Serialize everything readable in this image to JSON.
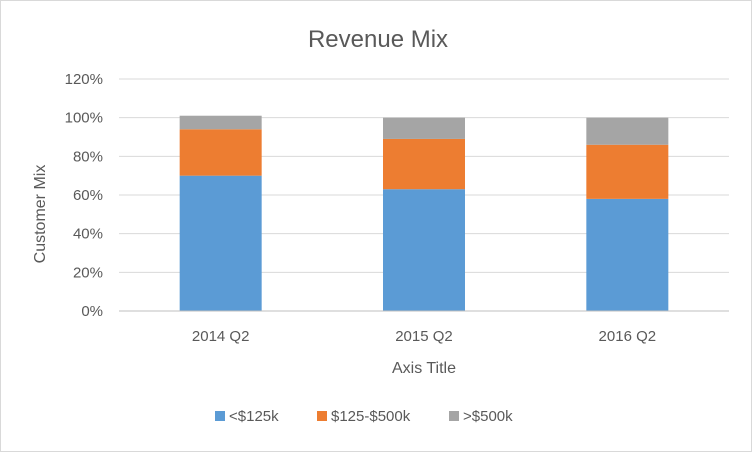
{
  "chart_data": {
    "type": "stacked-bar",
    "title": "Revenue Mix",
    "xlabel": "Axis Title",
    "ylabel": "Customer Mix",
    "categories": [
      "2014 Q2",
      "2015 Q2",
      "2016 Q2"
    ],
    "series": [
      {
        "name": "<$125k",
        "color": "#5b9bd5",
        "values": [
          70,
          63,
          58
        ]
      },
      {
        "name": "$125-$500k",
        "color": "#ed7d31",
        "values": [
          24,
          26,
          28
        ]
      },
      {
        "name": ">$500k",
        "color": "#a5a5a5",
        "values": [
          7,
          11,
          14
        ]
      }
    ],
    "ylim": [
      0,
      120
    ],
    "yticks": [
      0,
      20,
      40,
      60,
      80,
      100,
      120
    ],
    "ytick_labels": [
      "0%",
      "20%",
      "40%",
      "60%",
      "80%",
      "100%",
      "120%"
    ],
    "grid": true,
    "legend_position": "bottom"
  }
}
